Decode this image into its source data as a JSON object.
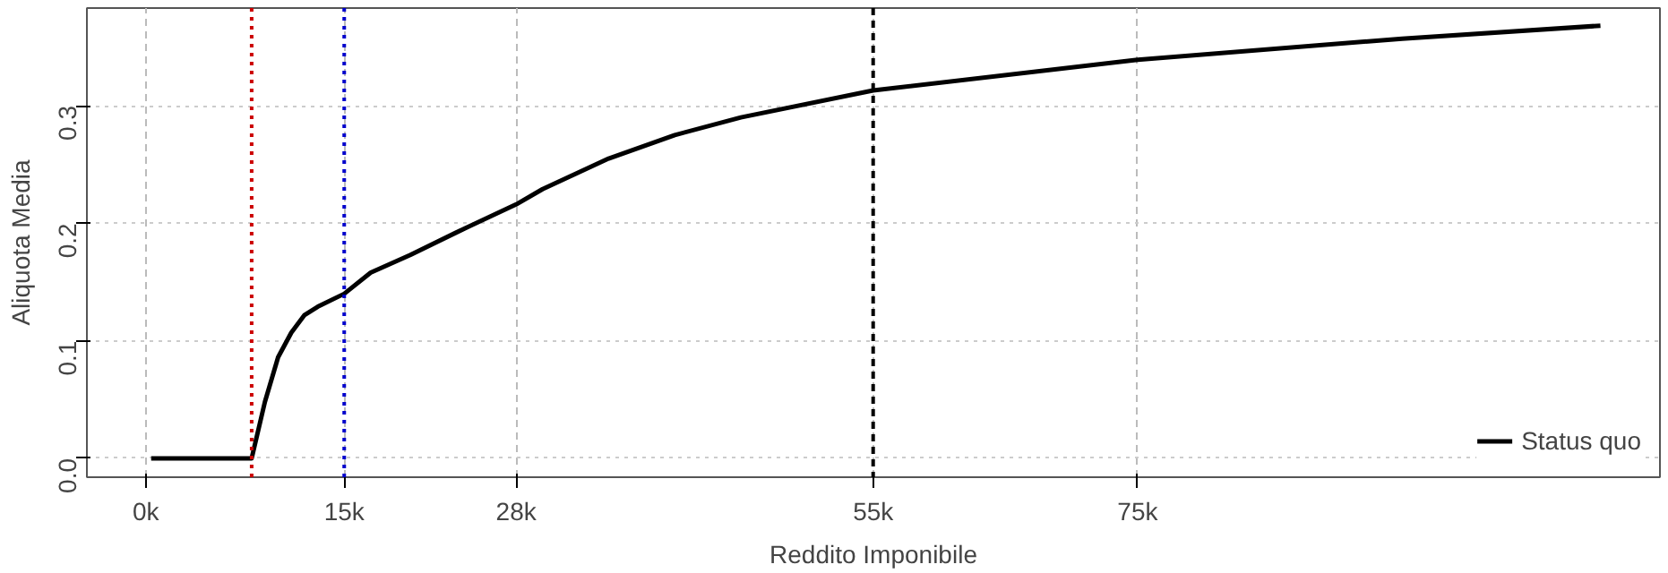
{
  "chart_data": {
    "type": "line",
    "xlabel": "Reddito Imponibile",
    "ylabel": "Aliquota Media",
    "series": [
      {
        "name": "Status quo",
        "color": "#000000",
        "x": [
          400,
          8000,
          9000,
          10000,
          11000,
          12000,
          13000,
          15000,
          17000,
          20000,
          24000,
          28000,
          30000,
          35000,
          40000,
          45000,
          55000,
          75000,
          95000,
          110000
        ],
        "values": [
          0,
          0,
          0.048,
          0.086,
          0.107,
          0.122,
          0.129,
          0.14,
          0.158,
          0.173,
          0.195,
          0.216,
          0.229,
          0.255,
          0.275,
          0.29,
          0.313,
          0.339,
          0.357,
          0.368
        ]
      }
    ],
    "xlim": [
      -4460,
      114500
    ],
    "ylim": [
      -0.016,
      0.383
    ],
    "xticks": [
      {
        "value": 0,
        "label": "0k"
      },
      {
        "value": 15000,
        "label": "15k"
      },
      {
        "value": 28000,
        "label": "28k"
      },
      {
        "value": 55000,
        "label": "55k"
      },
      {
        "value": 75000,
        "label": "75k"
      }
    ],
    "yticks": [
      {
        "value": 0,
        "label": "0.0"
      },
      {
        "value": 0.1,
        "label": "0.1"
      },
      {
        "value": 0.2,
        "label": "0.2"
      },
      {
        "value": 0.3,
        "label": "0.3"
      }
    ],
    "ref_lines": [
      {
        "axis": "x",
        "value": 8000,
        "color": "#cc0000",
        "line_style": "dotted"
      },
      {
        "axis": "x",
        "value": 15000,
        "color": "#0000cc",
        "line_style": "dotted"
      },
      {
        "axis": "x",
        "value": 55000,
        "color": "#000000",
        "line_style": "dashed"
      }
    ],
    "grid": true,
    "legend": "bottom right",
    "line_style": "solid",
    "marker": "none"
  }
}
